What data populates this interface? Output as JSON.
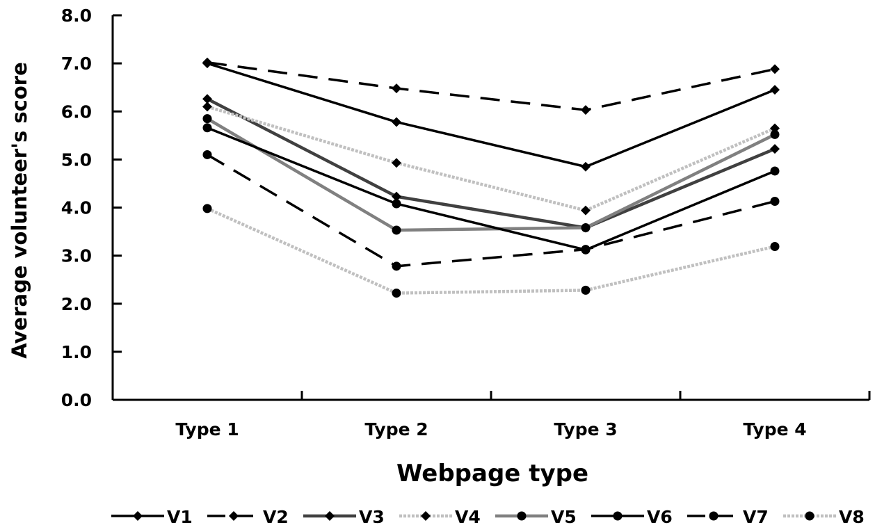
{
  "chart_data": {
    "type": "line",
    "xlabel": "Webpage type",
    "ylabel": "Average volunteer's score",
    "categories": [
      "Type 1",
      "Type 2",
      "Type 3",
      "Type 4"
    ],
    "ylim": [
      0,
      8
    ],
    "yticks": [
      "0.0",
      "1.0",
      "2.0",
      "3.0",
      "4.0",
      "5.0",
      "6.0",
      "7.0",
      "8.0"
    ],
    "grid": false,
    "legend_position": "bottom",
    "series": [
      {
        "name": "V1",
        "values": [
          7.0,
          5.78,
          4.85,
          6.45
        ],
        "color": "#000000",
        "dash": "solid",
        "marker": "diamond"
      },
      {
        "name": "V2",
        "values": [
          7.02,
          6.48,
          6.03,
          6.88
        ],
        "color": "#000000",
        "dash": "dashed",
        "marker": "diamond"
      },
      {
        "name": "V3",
        "values": [
          6.26,
          4.23,
          3.58,
          5.22
        ],
        "color": "#404040",
        "dash": "solid",
        "marker": "diamond"
      },
      {
        "name": "V4",
        "values": [
          6.1,
          4.93,
          3.94,
          5.65
        ],
        "color": "#c0c0c0",
        "dash": "dotted",
        "marker": "diamond"
      },
      {
        "name": "V5",
        "values": [
          5.85,
          3.53,
          3.58,
          5.52
        ],
        "color": "#808080",
        "dash": "solid",
        "marker": "circle"
      },
      {
        "name": "V6",
        "values": [
          5.66,
          4.08,
          3.12,
          4.76
        ],
        "color": "#000000",
        "dash": "solid",
        "marker": "circle"
      },
      {
        "name": "V7",
        "values": [
          5.1,
          2.78,
          3.13,
          4.13
        ],
        "color": "#000000",
        "dash": "dashed",
        "marker": "circle"
      },
      {
        "name": "V8",
        "values": [
          3.98,
          2.22,
          2.28,
          3.19
        ],
        "color": "#c0c0c0",
        "dash": "dotted",
        "marker": "circle"
      }
    ]
  }
}
